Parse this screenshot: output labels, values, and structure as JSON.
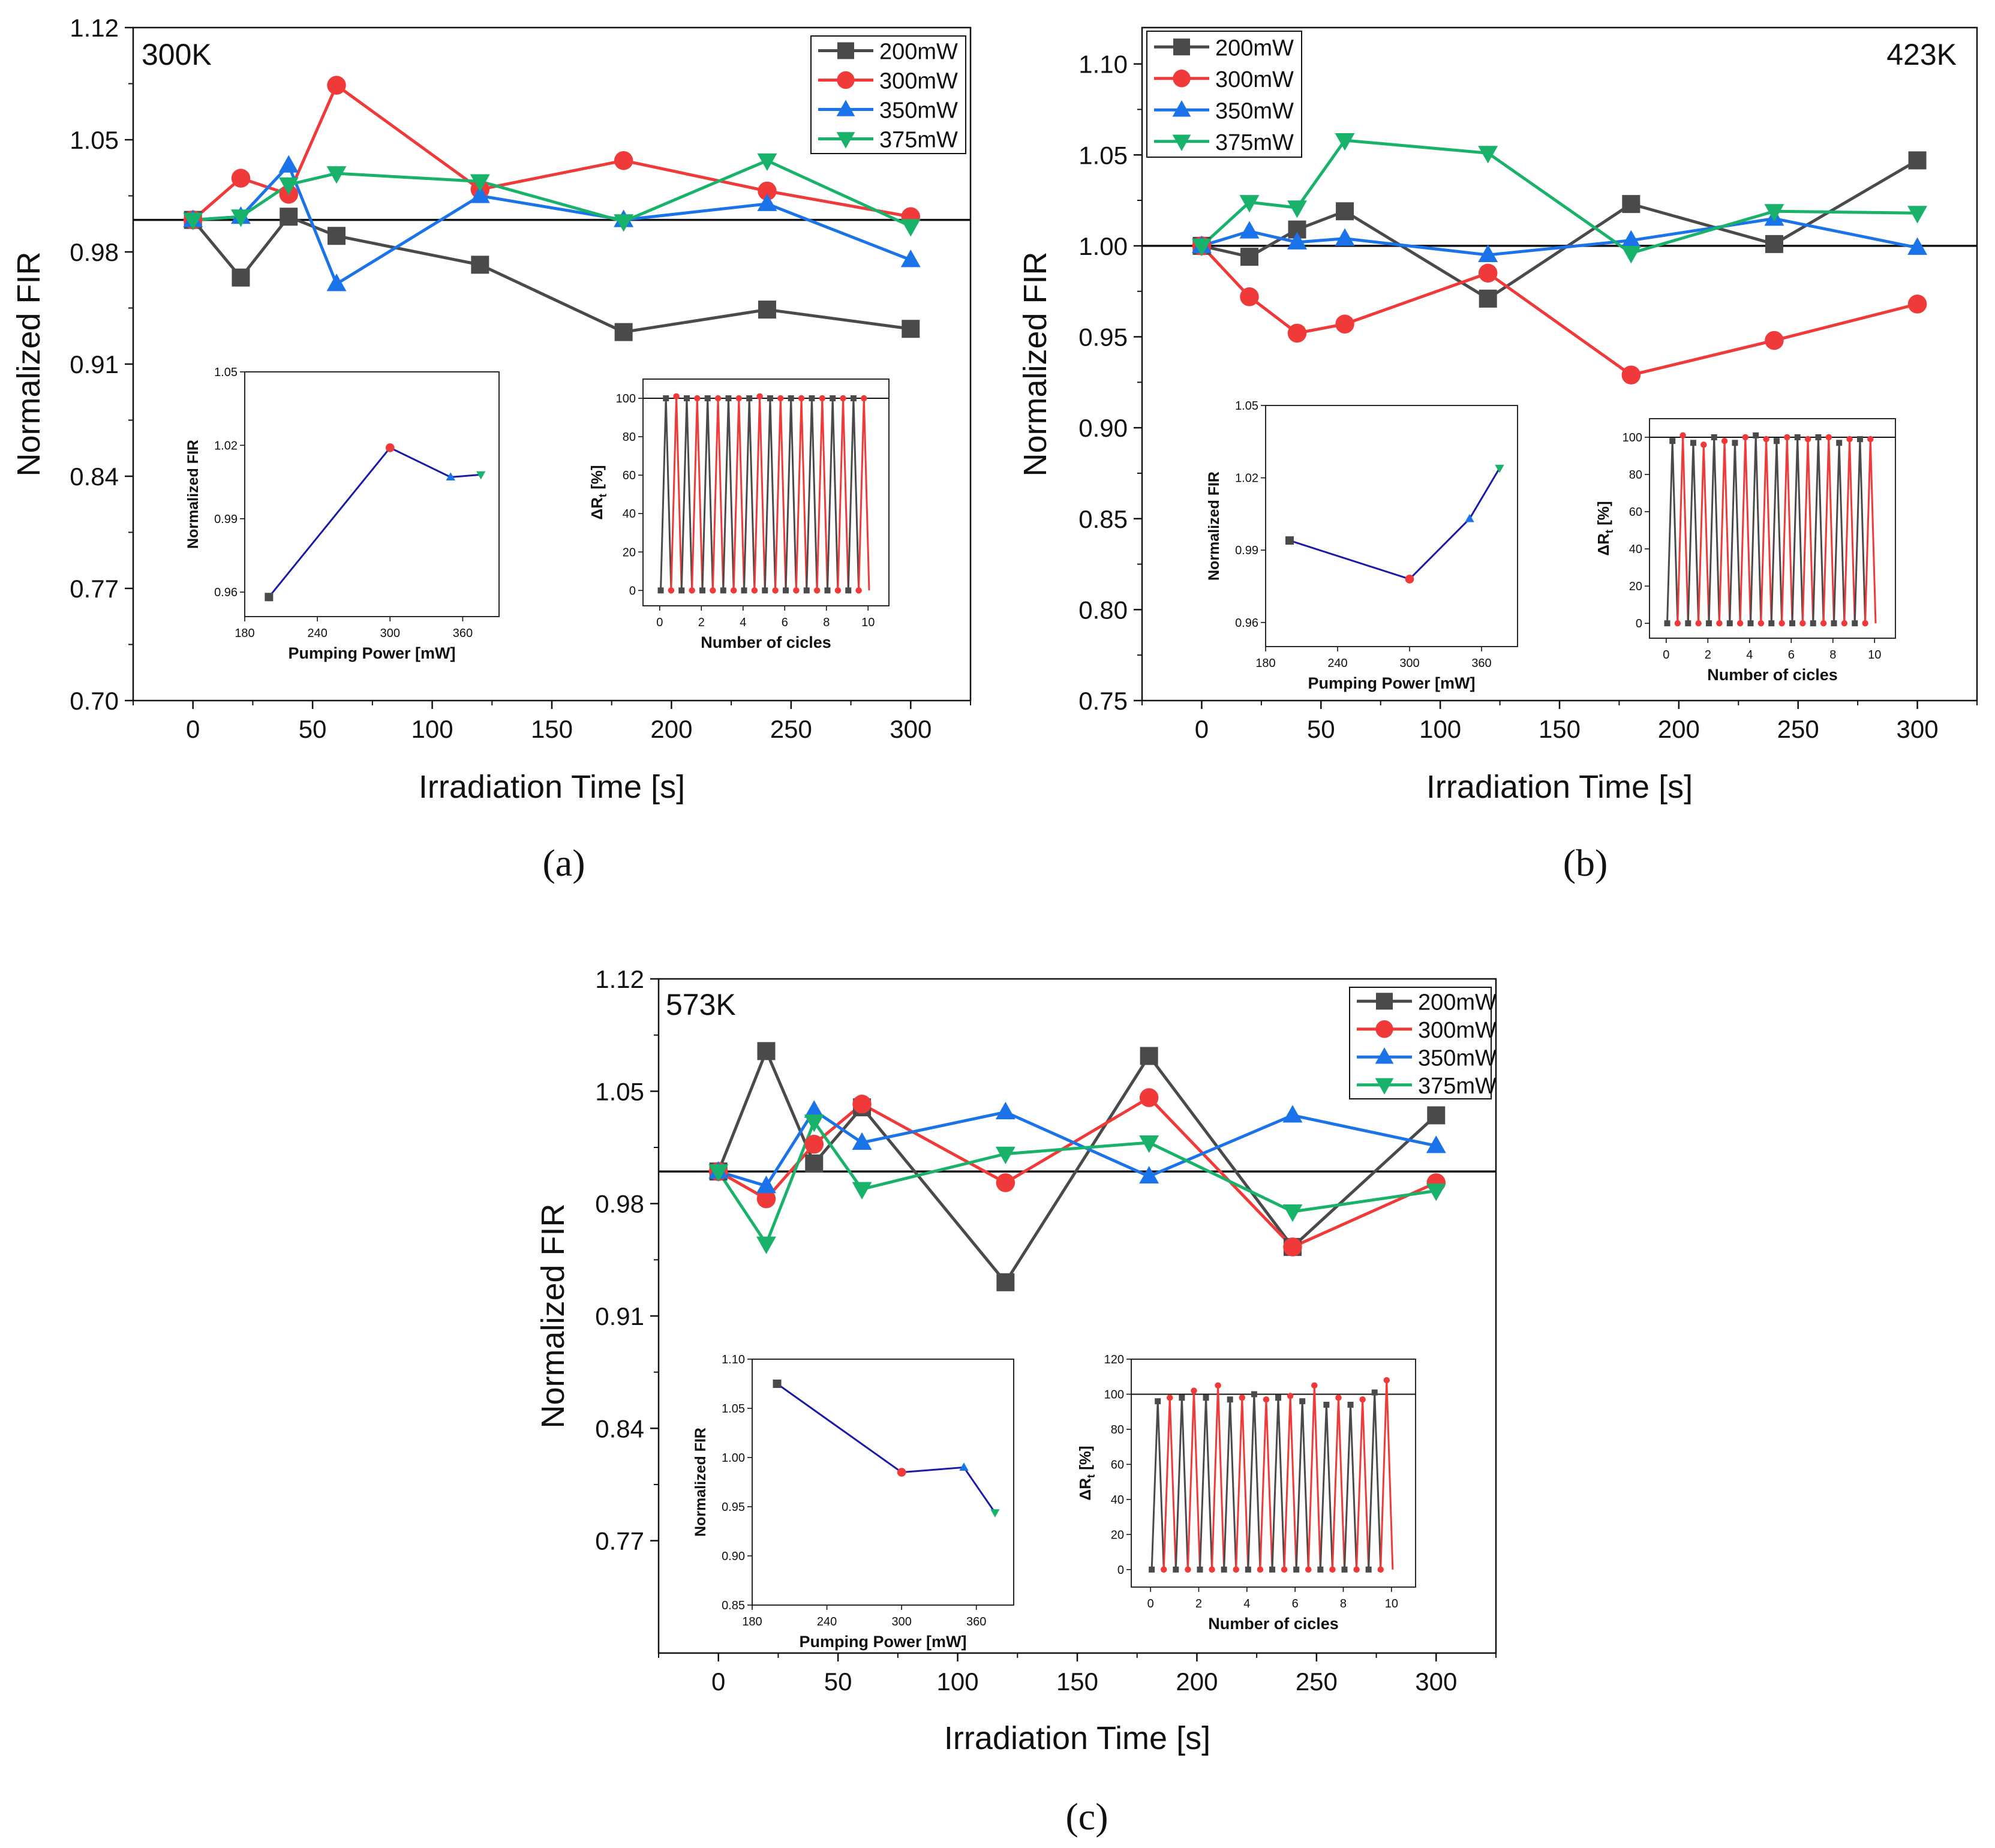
{
  "figure": {
    "subcaptions": [
      "(a)",
      "(b)",
      "(c)"
    ],
    "series_colors": {
      "200mW": "#4a4a4a",
      "300mW": "#f03a3a",
      "350mW": "#1a73e8",
      "375mW": "#18b26a"
    },
    "inset_line_color": "#1a1aa8"
  },
  "chart_data": [
    {
      "panel": "(a)",
      "type": "line",
      "annotation": "300K",
      "annotation_position": "top-left",
      "legend_position": "top-right",
      "xlabel": "Irradiation Time [s]",
      "ylabel": "Normalized FIR",
      "xlim": [
        -25,
        325
      ],
      "ylim": [
        0.7,
        1.12
      ],
      "xticks": [
        0,
        50,
        100,
        150,
        200,
        250,
        300
      ],
      "xtick_labels": [
        "0",
        "50",
        "100",
        "150",
        "200",
        "250",
        "300"
      ],
      "yticks": [
        0.7,
        0.77,
        0.84,
        0.91,
        0.98,
        1.05,
        1.12
      ],
      "ytick_labels": [
        "0.70",
        "0.77",
        "0.84",
        "0.91",
        "0.98",
        "1.05",
        "1.12"
      ],
      "reference_line": 1.0,
      "x": [
        0,
        20,
        40,
        60,
        120,
        180,
        240,
        300
      ],
      "series": [
        {
          "name": "200mW",
          "marker": "square",
          "values": [
            1.0,
            0.964,
            1.002,
            0.99,
            0.972,
            0.93,
            0.944,
            0.932
          ]
        },
        {
          "name": "300mW",
          "marker": "circle",
          "values": [
            1.0,
            1.026,
            1.016,
            1.084,
            1.019,
            1.037,
            1.018,
            1.002
          ]
        },
        {
          "name": "350mW",
          "marker": "triangle-up",
          "values": [
            1.0,
            1.002,
            1.034,
            0.96,
            1.015,
            1.0,
            1.01,
            0.975
          ]
        },
        {
          "name": "375mW",
          "marker": "triangle-down",
          "values": [
            1.0,
            1.002,
            1.022,
            1.029,
            1.024,
            0.999,
            1.037,
            0.996
          ]
        }
      ],
      "insets": [
        {
          "type": "line",
          "xlabel": "Pumping Power [mW]",
          "ylabel": "Normalized FIR",
          "xlim": [
            180,
            390
          ],
          "ylim": [
            0.95,
            1.05
          ],
          "xticks": [
            180,
            240,
            300,
            360
          ],
          "xtick_labels": [
            "180",
            "240",
            "300",
            "360"
          ],
          "yticks": [
            0.96,
            0.99,
            1.02,
            1.05
          ],
          "ytick_labels": [
            "0.96",
            "0.99",
            "1.02",
            "1.05"
          ],
          "x": [
            200,
            300,
            350,
            375
          ],
          "values": [
            0.958,
            1.019,
            1.007,
            1.008
          ]
        },
        {
          "type": "cycles",
          "xlabel": "Number of cicles",
          "ylabel": "ΔR",
          "ylabel_subscript": "t",
          "ylabel_suffix": " [%]",
          "xlim": [
            -0.8,
            11
          ],
          "ylim": [
            -8,
            110
          ],
          "xticks": [
            0,
            2,
            4,
            6,
            8,
            10
          ],
          "xtick_labels": [
            "0",
            "2",
            "4",
            "6",
            "8",
            "10"
          ],
          "yticks": [
            0,
            20,
            40,
            60,
            80,
            100
          ],
          "ytick_labels": [
            "0",
            "20",
            "40",
            "60",
            "80",
            "100"
          ],
          "reference_line": 100,
          "high_values": [
            100,
            101,
            100,
            100,
            100,
            100,
            100,
            100,
            100,
            101,
            100,
            100,
            100,
            100,
            100,
            100,
            100,
            100,
            100,
            100
          ]
        }
      ]
    },
    {
      "panel": "(b)",
      "type": "line",
      "annotation": "423K",
      "annotation_position": "top-right",
      "legend_position": "top-left",
      "xlabel": "Irradiation Time [s]",
      "ylabel": "Normalized FIR",
      "xlim": [
        -25,
        325
      ],
      "ylim": [
        0.75,
        1.12
      ],
      "xticks": [
        0,
        50,
        100,
        150,
        200,
        250,
        300
      ],
      "xtick_labels": [
        "0",
        "50",
        "100",
        "150",
        "200",
        "250",
        "300"
      ],
      "yticks": [
        0.75,
        0.8,
        0.85,
        0.9,
        0.95,
        1.0,
        1.05,
        1.1
      ],
      "ytick_labels": [
        "0.75",
        "0.80",
        "0.85",
        "0.90",
        "0.95",
        "1.00",
        "1.05",
        "1.10"
      ],
      "reference_line": 1.0,
      "x": [
        0,
        20,
        40,
        60,
        120,
        180,
        240,
        300
      ],
      "series": [
        {
          "name": "200mW",
          "marker": "square",
          "values": [
            1.0,
            0.994,
            1.009,
            1.019,
            0.971,
            1.023,
            1.001,
            1.047
          ]
        },
        {
          "name": "300mW",
          "marker": "circle",
          "values": [
            1.0,
            0.972,
            0.952,
            0.957,
            0.985,
            0.929,
            0.948,
            0.968
          ]
        },
        {
          "name": "350mW",
          "marker": "triangle-up",
          "values": [
            1.0,
            1.008,
            1.002,
            1.004,
            0.995,
            1.003,
            1.015,
            0.999
          ]
        },
        {
          "name": "375mW",
          "marker": "triangle-down",
          "values": [
            1.0,
            1.024,
            1.021,
            1.058,
            1.051,
            0.996,
            1.019,
            1.018
          ]
        }
      ],
      "insets": [
        {
          "type": "line",
          "xlabel": "Pumping Power [mW]",
          "ylabel": "Normalized FIR",
          "xlim": [
            180,
            390
          ],
          "ylim": [
            0.95,
            1.05
          ],
          "xticks": [
            180,
            240,
            300,
            360
          ],
          "xtick_labels": [
            "180",
            "240",
            "300",
            "360"
          ],
          "yticks": [
            0.96,
            0.99,
            1.02,
            1.05
          ],
          "ytick_labels": [
            "0.96",
            "0.99",
            "1.02",
            "1.05"
          ],
          "x": [
            200,
            300,
            350,
            375
          ],
          "values": [
            0.994,
            0.978,
            1.003,
            1.024
          ]
        },
        {
          "type": "cycles",
          "xlabel": "Number of cicles",
          "ylabel": "ΔR",
          "ylabel_subscript": "t",
          "ylabel_suffix": " [%]",
          "xlim": [
            -0.8,
            11
          ],
          "ylim": [
            -8,
            110
          ],
          "xticks": [
            0,
            2,
            4,
            6,
            8,
            10
          ],
          "xtick_labels": [
            "0",
            "2",
            "4",
            "6",
            "8",
            "10"
          ],
          "yticks": [
            0,
            20,
            40,
            60,
            80,
            100
          ],
          "ytick_labels": [
            "0",
            "20",
            "40",
            "60",
            "80",
            "100"
          ],
          "reference_line": 100,
          "high_values": [
            98,
            101,
            97,
            96,
            100,
            98,
            97,
            100,
            101,
            99,
            98,
            100,
            100,
            99,
            100,
            100,
            97,
            99,
            99,
            99
          ]
        }
      ]
    },
    {
      "panel": "(c)",
      "type": "line",
      "annotation": "573K",
      "annotation_position": "top-left",
      "legend_position": "top-right",
      "xlabel": "Irradiation Time [s]",
      "ylabel": "Normalized FIR",
      "xlim": [
        -25,
        325
      ],
      "ylim": [
        0.7,
        1.12
      ],
      "xticks": [
        0,
        50,
        100,
        150,
        200,
        250,
        300
      ],
      "xtick_labels": [
        "0",
        "50",
        "100",
        "150",
        "200",
        "250",
        "300"
      ],
      "yticks": [
        0.77,
        0.84,
        0.91,
        0.98,
        1.05,
        1.12
      ],
      "ytick_labels": [
        "0.77",
        "0.84",
        "0.91",
        "0.98",
        "1.05",
        "1.12"
      ],
      "reference_line": 1.0,
      "x": [
        0,
        20,
        40,
        60,
        120,
        180,
        240,
        300
      ],
      "series": [
        {
          "name": "200mW",
          "marker": "square",
          "values": [
            1.0,
            1.075,
            1.005,
            1.04,
            0.931,
            1.072,
            0.953,
            1.035
          ]
        },
        {
          "name": "300mW",
          "marker": "circle",
          "values": [
            1.0,
            0.983,
            1.017,
            1.042,
            0.993,
            1.046,
            0.953,
            0.993
          ]
        },
        {
          "name": "350mW",
          "marker": "triangle-up",
          "values": [
            1.0,
            0.991,
            1.038,
            1.018,
            1.037,
            0.997,
            1.035,
            1.016
          ]
        },
        {
          "name": "375mW",
          "marker": "triangle-down",
          "values": [
            1.0,
            0.955,
            1.031,
            0.989,
            1.011,
            1.018,
            0.975,
            0.988
          ]
        }
      ],
      "insets": [
        {
          "type": "line",
          "xlabel": "Pumping Power [mW]",
          "ylabel": "Normalized FIR",
          "xlim": [
            180,
            390
          ],
          "ylim": [
            0.85,
            1.1
          ],
          "xticks": [
            180,
            240,
            300,
            360
          ],
          "xtick_labels": [
            "180",
            "240",
            "300",
            "360"
          ],
          "yticks": [
            0.85,
            0.9,
            0.95,
            1.0,
            1.05,
            1.1
          ],
          "ytick_labels": [
            "0.85",
            "0.90",
            "0.95",
            "1.00",
            "1.05",
            "1.10"
          ],
          "x": [
            200,
            300,
            350,
            375
          ],
          "values": [
            1.075,
            0.985,
            0.99,
            0.944
          ]
        },
        {
          "type": "cycles",
          "xlabel": "Number of cicles",
          "ylabel": "ΔR",
          "ylabel_subscript": "t",
          "ylabel_suffix": " [%]",
          "xlim": [
            -0.8,
            11
          ],
          "ylim": [
            -10,
            120
          ],
          "xticks": [
            0,
            2,
            4,
            6,
            8,
            10
          ],
          "xtick_labels": [
            "0",
            "2",
            "4",
            "6",
            "8",
            "10"
          ],
          "yticks": [
            0,
            20,
            40,
            60,
            80,
            100,
            120
          ],
          "ytick_labels": [
            "0",
            "20",
            "40",
            "60",
            "80",
            "100",
            "120"
          ],
          "reference_line": 100,
          "high_values": [
            96,
            98,
            98,
            102,
            98,
            105,
            97,
            98,
            100,
            97,
            98,
            99,
            96,
            105,
            94,
            98,
            94,
            97,
            101,
            108
          ]
        }
      ]
    }
  ]
}
